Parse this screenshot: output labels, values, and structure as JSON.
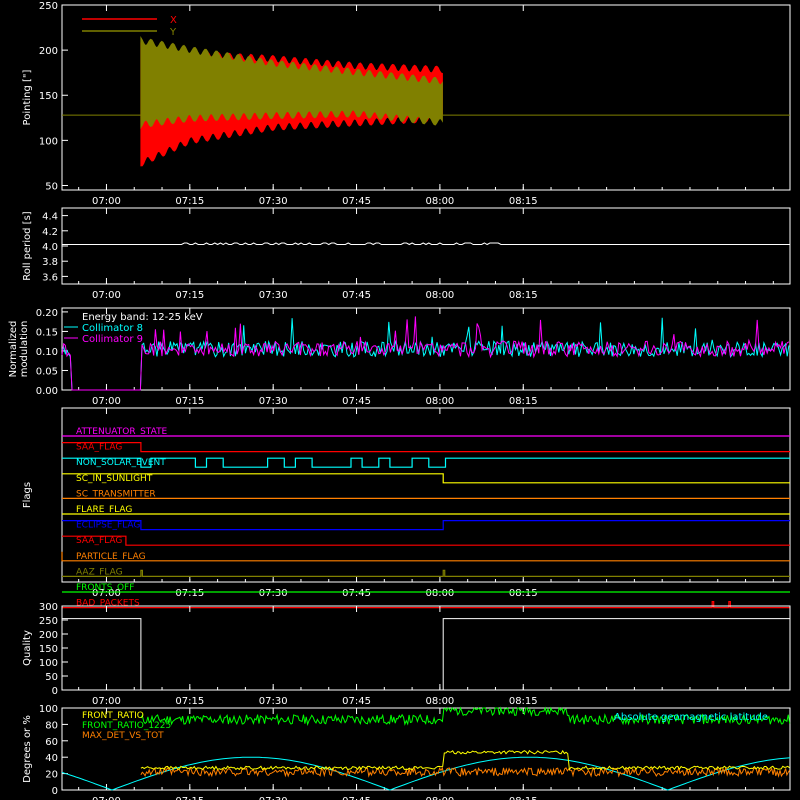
{
  "time_axis": {
    "range_minutes": [
      -8,
      123
    ],
    "tick_minutes": [
      0,
      15,
      30,
      45,
      60,
      75
    ],
    "tick_labels": [
      "07:00",
      "07:15",
      "07:30",
      "07:45",
      "08:00",
      "08:15"
    ]
  },
  "chart_data": [
    {
      "id": "pointing",
      "type": "area",
      "ylabel": "Pointing [\"]",
      "ylim": [
        45,
        250
      ],
      "yticks": [
        50,
        100,
        150,
        200,
        250
      ],
      "grid": false,
      "legend_position": "top-left",
      "reference_line": 128,
      "series": [
        {
          "name": "X",
          "color": "#ff0000",
          "envelope": {
            "start": 6.2,
            "end": 60.6,
            "upper": [
              [
                6.2,
                205
              ],
              [
                15,
                195
              ],
              [
                30,
                190
              ],
              [
                45,
                182
              ],
              [
                60.6,
                178
              ]
            ],
            "lower": [
              [
                6.2,
                75
              ],
              [
                15,
                100
              ],
              [
                30,
                115
              ],
              [
                45,
                120
              ],
              [
                60.6,
                125
              ]
            ]
          }
        },
        {
          "name": "Y",
          "color": "#808000",
          "envelope": {
            "start": 6.2,
            "end": 60.6,
            "upper": [
              [
                6.2,
                210
              ],
              [
                15,
                200
              ],
              [
                30,
                185
              ],
              [
                45,
                175
              ],
              [
                60.6,
                165
              ]
            ],
            "lower": [
              [
                6.2,
                118
              ],
              [
                15,
                125
              ],
              [
                30,
                128
              ],
              [
                45,
                130
              ],
              [
                60.6,
                120
              ]
            ]
          }
        }
      ]
    },
    {
      "id": "roll_period",
      "type": "line",
      "ylabel": "Roll period [s]",
      "ylim": [
        3.5,
        4.5
      ],
      "yticks": [
        3.6,
        3.8,
        4.0,
        4.2,
        4.4
      ],
      "ytick_labels": [
        "3.6",
        "3.8",
        "4.0",
        "4.2",
        "4.4"
      ],
      "series": [
        {
          "name": "",
          "color": "#ffffff",
          "value": 4.02,
          "noise_range": [
            13,
            72
          ]
        }
      ]
    },
    {
      "id": "modulation",
      "type": "line",
      "ylabel": "Normalized modulation",
      "ylim": [
        0,
        0.21
      ],
      "yticks": [
        0.0,
        0.05,
        0.1,
        0.15,
        0.2
      ],
      "ytick_labels": [
        "0.00",
        "0.05",
        "0.10",
        "0.15",
        "0.20"
      ],
      "annotation": "Energy band: 12-25 keV",
      "legend_position": "top-left",
      "series": [
        {
          "name": "Collimator 8",
          "color": "#00ffff",
          "mean": 0.105,
          "active_from": 6.2
        },
        {
          "name": "Collimator 9",
          "color": "#ff00ff",
          "mean": 0.105,
          "active_from": 6.2
        }
      ]
    },
    {
      "id": "flags",
      "type": "line",
      "ylabel": "Flags",
      "flags": [
        {
          "name": "ATTENUATOR_STATE",
          "color": "#ff00ff",
          "transitions": []
        },
        {
          "name": "SAA_FLAG",
          "color": "#ff0000",
          "transitions": [
            [
              6.2,
              0
            ]
          ],
          "initial": 1
        },
        {
          "name": "NON_SOLAR_EVENT",
          "color": "#00ffff",
          "transitions": [
            [
              6.2,
              0
            ],
            [
              8,
              1
            ],
            [
              16,
              0
            ],
            [
              18,
              1
            ],
            [
              21,
              0
            ],
            [
              29,
              1
            ],
            [
              32,
              0
            ],
            [
              34,
              1
            ],
            [
              37,
              0
            ],
            [
              44,
              1
            ],
            [
              46,
              0
            ],
            [
              49,
              1
            ],
            [
              51,
              0
            ],
            [
              55,
              1
            ],
            [
              58,
              0
            ],
            [
              61,
              1
            ]
          ],
          "initial": 1
        },
        {
          "name": "SC_IN_SUNLIGHT",
          "color": "#ffff00",
          "transitions": [
            [
              60.6,
              0
            ]
          ],
          "initial": 1
        },
        {
          "name": "SC_TRANSMITTER",
          "color": "#ff8000",
          "transitions": []
        },
        {
          "name": "FLARE_FLAG",
          "color": "#ffff00",
          "transitions": []
        },
        {
          "name": "ECLIPSE_FLAG",
          "color": "#0000ff",
          "transitions": [
            [
              6.2,
              0
            ],
            [
              60.6,
              1
            ]
          ],
          "initial": 1
        },
        {
          "name": "SAA_FLAG",
          "color": "#ff0000",
          "transitions": [
            [
              3.5,
              0
            ]
          ],
          "initial": 1
        },
        {
          "name": "PARTICLE_FLAG",
          "color": "#ff8000",
          "transitions": [
            [
              -8,
              0
            ]
          ],
          "initial": 1
        },
        {
          "name": "AAZ_FLAG",
          "color": "#808000",
          "spikes": [
            6.2,
            60.6
          ]
        },
        {
          "name": "FRONTS_OFF",
          "color": "#00ff00",
          "transitions": []
        },
        {
          "name": "BAD_PACKETS",
          "color": "#ff0000",
          "spikes": [
            109,
            112
          ]
        }
      ]
    },
    {
      "id": "quality",
      "type": "line",
      "ylabel": "Quality",
      "ylim": [
        0,
        300
      ],
      "yticks": [
        0,
        50,
        100,
        150,
        200,
        250,
        300
      ],
      "series": [
        {
          "name": "",
          "color": "#ffffff",
          "points": [
            [
              -8,
              255
            ],
            [
              6.2,
              255
            ],
            [
              6.2,
              0
            ],
            [
              60.6,
              0
            ],
            [
              60.6,
              255
            ],
            [
              123,
              255
            ]
          ]
        }
      ]
    },
    {
      "id": "geomag",
      "type": "line",
      "ylabel": "Degrees or %",
      "ylim": [
        0,
        100
      ],
      "yticks": [
        0,
        20,
        40,
        60,
        80,
        100
      ],
      "legend_position": "top-left",
      "annotation": "Absolute geomagnetic latitude",
      "annotation_color": "#00ffff",
      "series": [
        {
          "name": "FRONT_RATIO",
          "color": "#ffff00"
        },
        {
          "name": "FRONT_RATIO_1225",
          "color": "#00ff00"
        },
        {
          "name": "MAX_DET_VS_TOT",
          "color": "#ff8000"
        }
      ]
    }
  ]
}
